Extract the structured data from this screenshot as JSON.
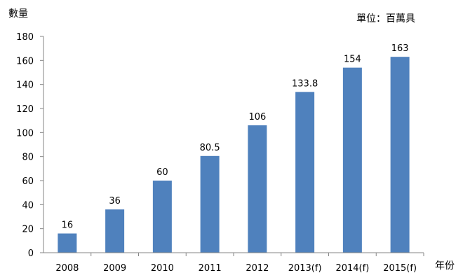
{
  "chart_data": {
    "type": "bar",
    "title": "",
    "ylabel": "數量",
    "xlabel": "年份",
    "unit_note": "單位：百萬具",
    "categories": [
      "2008",
      "2009",
      "2010",
      "2011",
      "2012",
      "2013(f)",
      "2014(f)",
      "2015(f)"
    ],
    "values": [
      16,
      36,
      60,
      80.5,
      106,
      133.8,
      154,
      163
    ],
    "value_labels": [
      "16",
      "36",
      "60",
      "80.5",
      "106",
      "133.8",
      "154",
      "163"
    ],
    "ylim": [
      0,
      180
    ],
    "yticks": [
      0,
      20,
      40,
      60,
      80,
      100,
      120,
      140,
      160,
      180
    ],
    "grid": false,
    "legend": "none",
    "bar_color": "#4F81BD"
  }
}
